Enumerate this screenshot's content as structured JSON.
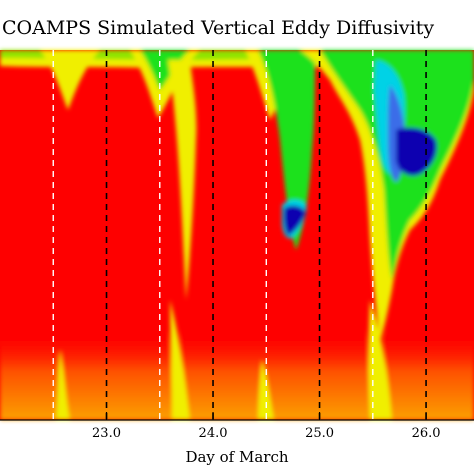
{
  "chart_data": {
    "type": "heatmap",
    "title": "COAMPS Simulated Vertical Eddy Diffusivity",
    "xlabel": "Day of March",
    "ylabel": "",
    "xlim": [
      22.0,
      26.45
    ],
    "x_ticks": [
      {
        "value": 23.0,
        "label": "23.0"
      },
      {
        "value": 24.0,
        "label": "24.0"
      },
      {
        "value": 25.0,
        "label": "25.0"
      },
      {
        "value": 26.0,
        "label": "26.0"
      }
    ],
    "midnight_lines": [
      23.0,
      24.0,
      25.0,
      26.0
    ],
    "noon_lines": [
      22.5,
      23.5,
      24.5,
      25.5
    ],
    "colors": {
      "low": "#1000b0",
      "mid_low": "#00d2e6",
      "mid": "#1ee11a",
      "mid_high": "#f0ef00",
      "high": "#fe0000",
      "midnight_line": "#000000",
      "noon_line": "#ffffff"
    }
  }
}
